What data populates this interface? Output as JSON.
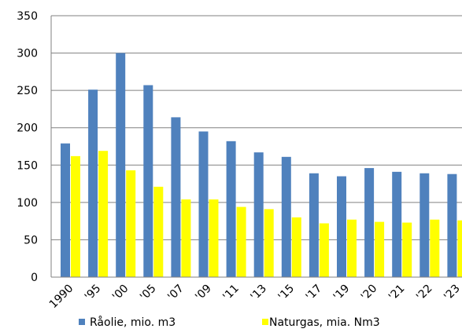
{
  "chart_data": {
    "type": "bar",
    "title": "",
    "xlabel": "",
    "ylabel": "",
    "categories": [
      "1990",
      "'95",
      "'00",
      "'05",
      "'07",
      "'09",
      "'11",
      "'13",
      "'15",
      "'17",
      "'19",
      "'20",
      "'21",
      "'22",
      "'23"
    ],
    "series": [
      {
        "name": "Råolie, mio. m3",
        "color": "#4f81bd",
        "values": [
          179,
          251,
          300,
          257,
          214,
          195,
          182,
          167,
          161,
          139,
          135,
          146,
          141,
          139,
          138
        ]
      },
      {
        "name": "Naturgas, mia. Nm3",
        "color": "#ffff00",
        "values": [
          162,
          169,
          143,
          121,
          104,
          104,
          94,
          91,
          80,
          72,
          77,
          74,
          73,
          77,
          76
        ]
      }
    ],
    "ylim": [
      0,
      350
    ],
    "yticks": [
      "0",
      "50",
      "100",
      "150",
      "200",
      "250",
      "300",
      "350"
    ],
    "grid": true,
    "legend_position": "bottom"
  }
}
